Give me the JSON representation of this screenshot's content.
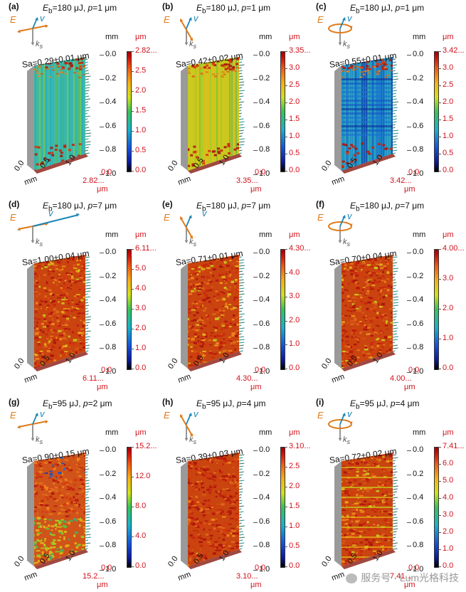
{
  "panels": [
    {
      "label": "(a)",
      "eb": "180 μJ",
      "p": "1 μm",
      "sa": "Sa=0.29±0.01 μm",
      "pol": "linear-h",
      "ticks": [
        "2.82...",
        "2.5",
        "2.0",
        "1.5",
        "1.0",
        "0.5",
        "0.0"
      ],
      "xmax": "2.82...",
      "surface": "aligned-cyan"
    },
    {
      "label": "(b)",
      "eb": "180 μJ",
      "p": "1 μm",
      "sa": "Sa=0.42±0.02 μm",
      "pol": "linear-v",
      "ticks": [
        "3.35...",
        "3.0",
        "2.5",
        "2.0",
        "1.5",
        "1.0",
        "0.5",
        "0.0"
      ],
      "xmax": "3.35...",
      "surface": "aligned-yellow"
    },
    {
      "label": "(c)",
      "eb": "180 μJ",
      "p": "1 μm",
      "sa": "Sa=0.55±0.01 μm",
      "pol": "circular",
      "ticks": [
        "3.42...",
        "3.0",
        "2.5",
        "2.0",
        "1.5",
        "1.0",
        "0.5",
        "0.0"
      ],
      "xmax": "3.42...",
      "surface": "circular-blue"
    },
    {
      "label": "(d)",
      "eb": "180 μJ",
      "p": "7 μm",
      "sa": "Sa=1.00±0.04 μm",
      "pol": "linear-h",
      "ticks": [
        "6.11...",
        "5.0",
        "4.0",
        "3.0",
        "2.0",
        "1.0",
        "0.0"
      ],
      "xmax": "6.11...",
      "surface": "rough"
    },
    {
      "label": "(e)",
      "eb": "180 μJ",
      "p": "7 μm",
      "sa": "Sa=0.71±0.01 μm",
      "pol": "linear-v",
      "ticks": [
        "4.30...",
        "4.0",
        "3.0",
        "2.0",
        "1.0",
        "0.0"
      ],
      "xmax": "4.30...",
      "surface": "rough"
    },
    {
      "label": "(f)",
      "eb": "180 μJ",
      "p": "7 μm",
      "sa": "Sa=0.70±0.04 μm",
      "pol": "circular",
      "ticks": [
        "4.00...",
        "3.0",
        "2.0",
        "1.0",
        "0.0"
      ],
      "xmax": "4.00...",
      "surface": "rough"
    },
    {
      "label": "(g)",
      "eb": "95 μJ",
      "p": "2 μm",
      "sa": "Sa=0.90±0.15 μm",
      "pol": "linear-h",
      "ticks": [
        "15.2...",
        "12.0",
        "8.0",
        "4.0",
        "0.0"
      ],
      "xmax": "15.2...",
      "surface": "mixed"
    },
    {
      "label": "(h)",
      "eb": "95 μJ",
      "p": "4 μm",
      "sa": "Sa=0.39±0.03 μm",
      "pol": "linear-v",
      "ticks": [
        "3.10...",
        "2.5",
        "2.0",
        "1.5",
        "1.0",
        "0.5",
        "0.0"
      ],
      "xmax": "3.10...",
      "surface": "rough-red"
    },
    {
      "label": "(i)",
      "eb": "95 μJ",
      "p": "4 μm",
      "sa": "Sa=0.72±0.02 μm",
      "pol": "circular",
      "ticks": [
        "7.41...",
        "6.0",
        "5.0",
        "4.0",
        "3.0",
        "2.0",
        "1.0",
        "0.0"
      ],
      "xmax": "7.41...",
      "surface": "striped"
    }
  ],
  "common": {
    "mm": "mm",
    "um": "μm",
    "yticks": [
      "0.0",
      "0.2",
      "0.4",
      "0.6",
      "0.8",
      "1.0"
    ],
    "xticks": [
      "0.0",
      "0.5",
      "1.0"
    ],
    "eb_prefix": "E",
    "eb_sub": "b",
    "eq": "=",
    "p_prefix": ", ",
    "p_var": "p",
    "p_eq": "=",
    "e_label": "E",
    "v_label": "v",
    "k_label": "k",
    "k_sub": "s",
    "xmin": "0.0"
  },
  "colors": {
    "accent_red": "#d0111b",
    "orange": "#e07b1a",
    "teal": "#1b87b5"
  },
  "watermark": "服务号 · Lum光格科技"
}
